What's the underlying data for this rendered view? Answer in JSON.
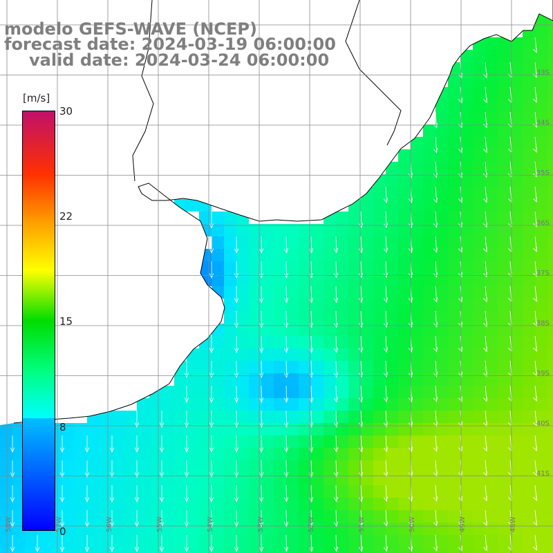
{
  "header": {
    "line1": "modelo GEFS-WAVE (NCEP)",
    "line2": "forecast date: 2024-03-19 06:00:00",
    "line3": "valid date: 2024-03-24 06:00:00"
  },
  "colorbar": {
    "unit": "[m/s]",
    "ticks": [
      "30",
      "22",
      "15",
      "8",
      "0"
    ],
    "scale": [
      {
        "value": 0,
        "color": "#0000ff"
      },
      {
        "value": 8,
        "color": "#00bfff"
      },
      {
        "value": 8,
        "color": "#00ffff"
      },
      {
        "value": 15,
        "color": "#00dd00"
      },
      {
        "value": 22,
        "color": "#ffa000"
      },
      {
        "value": 30,
        "color": "#c0106a"
      }
    ]
  },
  "map": {
    "variable": "wind speed and direction",
    "latitude_labels": [
      "33S",
      "34S",
      "35S",
      "36S",
      "37S",
      "38S",
      "39S",
      "40S",
      "41S"
    ],
    "longitude_labels": [
      "58W",
      "57W",
      "56W",
      "55W",
      "54W",
      "53W",
      "52W",
      "51W",
      "50W",
      "49W",
      "48W"
    ],
    "land_color": "#ffffff",
    "coast_color": "#000000",
    "grid_color": "#888888",
    "vector_color": "#ffffff"
  }
}
